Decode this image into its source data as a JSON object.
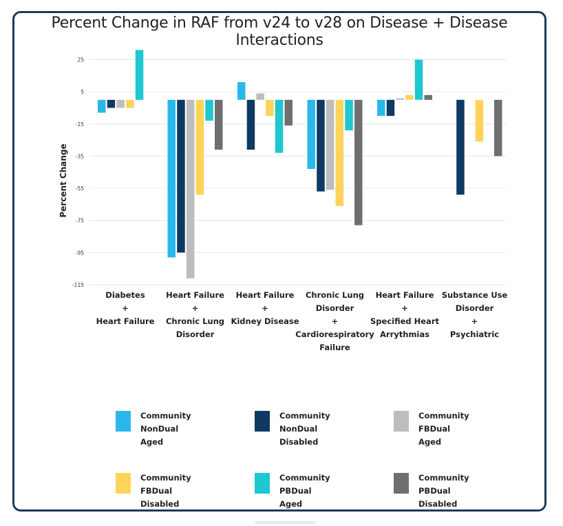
{
  "title": "Percent Change in RAF from v24 to v28 on Disease + Disease Interactions",
  "chart_data": {
    "type": "bar",
    "title": "Percent Change in RAF from v24 to v28 on Disease + Disease Interactions",
    "xlabel": "",
    "ylabel": "Percent Change",
    "ylim": [
      -115,
      35
    ],
    "yticks": [
      "25",
      "5",
      "-15",
      "-35",
      "-55",
      "-75",
      "-95",
      "-115"
    ],
    "grid": "horizontal",
    "legend_position": "bottom",
    "categories": [
      [
        "Diabetes",
        "+",
        "Heart Failure"
      ],
      [
        "Heart Failure",
        "+",
        "Chronic Lung",
        "Disorder"
      ],
      [
        "Heart Failure",
        "+",
        "Kidney Disease"
      ],
      [
        "Chronic Lung",
        "Disorder",
        "+",
        "Cardiorespiratory",
        "Failure"
      ],
      [
        "Heart Failure",
        "+",
        "Specified Heart",
        "Arrythmias"
      ],
      [
        "Substance Use",
        "Disorder",
        "+",
        "Psychiatric"
      ]
    ],
    "series": [
      {
        "name": "Community\nNonDual\nAged",
        "color": "#2ab8ea",
        "values": [
          -8,
          -98,
          11,
          -43,
          -10,
          0
        ]
      },
      {
        "name": "Community\nNonDual\nDisabled",
        "color": "#0e3a63",
        "values": [
          -5,
          -95,
          -31,
          -57,
          -10,
          -59
        ]
      },
      {
        "name": "Community\nFBDual\nAged",
        "color": "#bdbdbd",
        "values": [
          -5,
          -111,
          4,
          -56,
          1,
          0
        ]
      },
      {
        "name": "Community\nFBDual\nDisabled",
        "color": "#fdd35a",
        "values": [
          -5,
          -59,
          -10,
          -66,
          3,
          -26
        ]
      },
      {
        "name": "Community\nPBDual\nAged",
        "color": "#1fc7d0",
        "values": [
          31,
          -13,
          -33,
          -19,
          25,
          0
        ]
      },
      {
        "name": "Community\nPBDual\nDisabled",
        "color": "#6f6f6f",
        "values": [
          0,
          -31,
          -16,
          -78,
          3,
          -35
        ]
      }
    ]
  }
}
